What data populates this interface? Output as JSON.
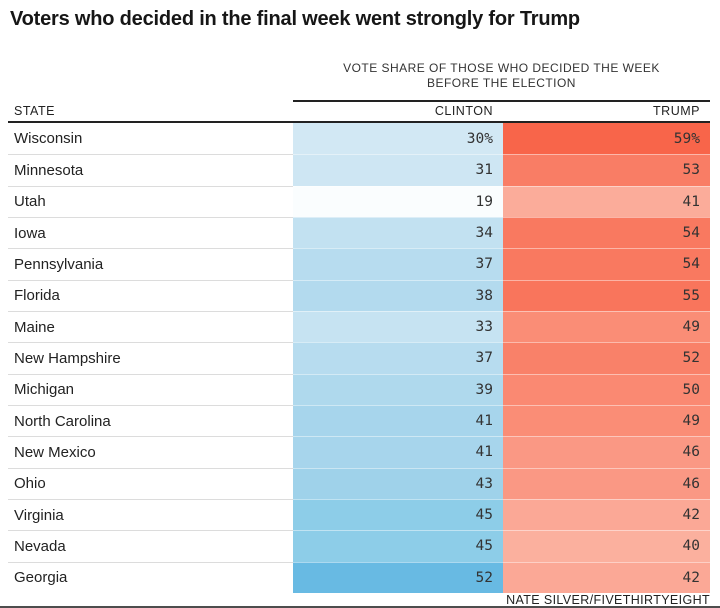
{
  "title": "Voters who decided in the final week went strongly for Trump",
  "table": {
    "group_header_line1": "VOTE SHARE OF THOSE WHO DECIDED THE WEEK",
    "group_header_line2": "BEFORE THE ELECTION",
    "columns": {
      "state": "STATE",
      "clinton": "CLINTON",
      "trump": "TRUMP"
    },
    "rows": [
      {
        "state": "Wisconsin",
        "clinton": "30%",
        "trump": "59%",
        "clinton_color": "#d2e8f4",
        "trump_color": "#f8654a"
      },
      {
        "state": "Minnesota",
        "clinton": "31",
        "trump": "53",
        "clinton_color": "#cee6f3",
        "trump_color": "#f97d65"
      },
      {
        "state": "Utah",
        "clinton": "19",
        "trump": "41",
        "clinton_color": "#fafdfe",
        "trump_color": "#fbac9a"
      },
      {
        "state": "Iowa",
        "clinton": "34",
        "trump": "54",
        "clinton_color": "#c2e1f1",
        "trump_color": "#f97960"
      },
      {
        "state": "Pennsylvania",
        "clinton": "37",
        "trump": "54",
        "clinton_color": "#b7dcef",
        "trump_color": "#f97960"
      },
      {
        "state": "Florida",
        "clinton": "38",
        "trump": "55",
        "clinton_color": "#b3daee",
        "trump_color": "#f9755c"
      },
      {
        "state": "Maine",
        "clinton": "33",
        "trump": "49",
        "clinton_color": "#c6e3f2",
        "trump_color": "#fa8d76"
      },
      {
        "state": "New Hampshire",
        "clinton": "37",
        "trump": "52",
        "clinton_color": "#b7dcef",
        "trump_color": "#f98169"
      },
      {
        "state": "Michigan",
        "clinton": "39",
        "trump": "50",
        "clinton_color": "#afd9ed",
        "trump_color": "#fa8972"
      },
      {
        "state": "North Carolina",
        "clinton": "41",
        "trump": "49",
        "clinton_color": "#a7d5ec",
        "trump_color": "#fa8d76"
      },
      {
        "state": "New Mexico",
        "clinton": "41",
        "trump": "46",
        "clinton_color": "#a7d5ec",
        "trump_color": "#fa9884"
      },
      {
        "state": "Ohio",
        "clinton": "43",
        "trump": "46",
        "clinton_color": "#9fd2ea",
        "trump_color": "#fa9884"
      },
      {
        "state": "Virginia",
        "clinton": "45",
        "trump": "42",
        "clinton_color": "#8dcde8",
        "trump_color": "#fba896"
      },
      {
        "state": "Nevada",
        "clinton": "45",
        "trump": "40",
        "clinton_color": "#8dcde8",
        "trump_color": "#fbb09e"
      },
      {
        "state": "Georgia",
        "clinton": "52",
        "trump": "42",
        "clinton_color": "#68bae3",
        "trump_color": "#fba896"
      }
    ]
  },
  "footer": {
    "credit": "NATE SILVER/FIVETHIRTYEIGHT"
  },
  "colors": {
    "clinton_max": "#68bae3",
    "clinton_min": "#fafdfe",
    "trump_max": "#f8654a",
    "trump_min": "#fbb09e",
    "rule_dark": "#222222",
    "row_divider": "#dcdcdc"
  },
  "chart_data": {
    "type": "table",
    "title": "Voters who decided in the final week went strongly for Trump",
    "column_group_label": "VOTE SHARE OF THOSE WHO DECIDED THE WEEK BEFORE THE ELECTION",
    "categories": [
      "Wisconsin",
      "Minnesota",
      "Utah",
      "Iowa",
      "Pennsylvania",
      "Florida",
      "Maine",
      "New Hampshire",
      "Michigan",
      "North Carolina",
      "New Mexico",
      "Ohio",
      "Virginia",
      "Nevada",
      "Georgia"
    ],
    "series": [
      {
        "name": "CLINTON",
        "values": [
          30,
          31,
          19,
          34,
          37,
          38,
          33,
          37,
          39,
          41,
          41,
          43,
          45,
          45,
          52
        ]
      },
      {
        "name": "TRUMP",
        "values": [
          59,
          53,
          41,
          54,
          54,
          55,
          49,
          52,
          50,
          49,
          46,
          46,
          42,
          40,
          42
        ]
      }
    ],
    "value_unit": "percent",
    "layout": "heatmap-shaded table, cell color intensity proportional to value (blue for Clinton, red for Trump)",
    "source": "NATE SILVER/FIVETHIRTYEIGHT"
  }
}
